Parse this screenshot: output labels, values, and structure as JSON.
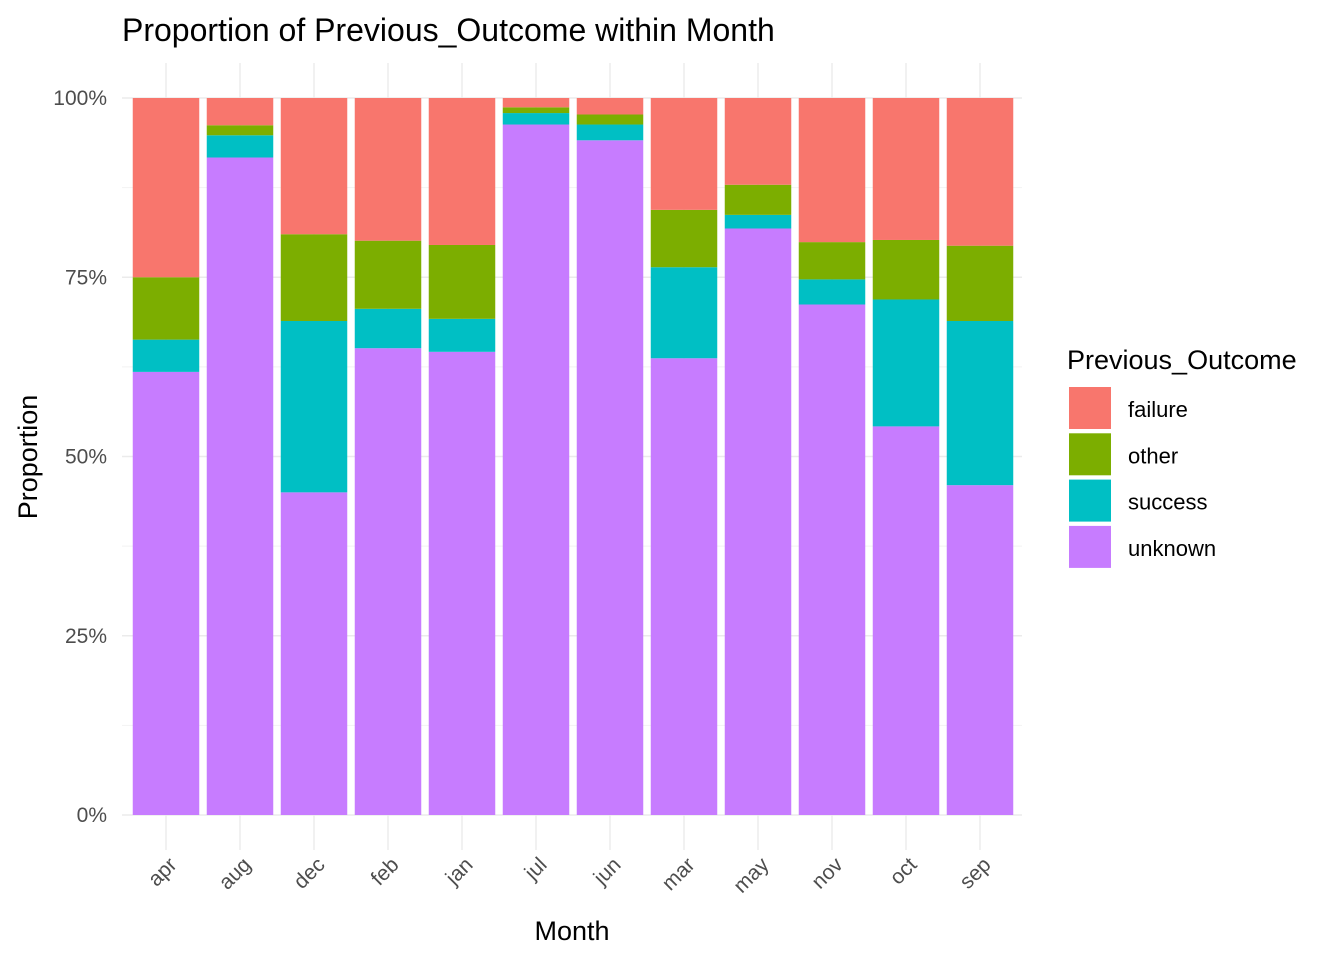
{
  "chart_data": {
    "type": "bar",
    "stacked": "proportion",
    "title": "Proportion of Previous_Outcome within Month",
    "xlabel": "Month",
    "ylabel": "Proportion",
    "ylim": [
      0,
      1
    ],
    "y_ticks": [
      "0%",
      "25%",
      "50%",
      "75%",
      "100%"
    ],
    "y_tick_values": [
      0,
      0.25,
      0.5,
      0.75,
      1.0
    ],
    "grid": true,
    "legend_position": "right",
    "legend_title": "Previous_Outcome",
    "categories": [
      "apr",
      "aug",
      "dec",
      "feb",
      "jan",
      "jul",
      "jun",
      "mar",
      "may",
      "nov",
      "oct",
      "sep"
    ],
    "series": [
      {
        "name": "unknown",
        "color": "#C77CFF",
        "values": [
          0.618,
          0.917,
          0.45,
          0.651,
          0.646,
          0.963,
          0.941,
          0.637,
          0.818,
          0.712,
          0.542,
          0.46
        ]
      },
      {
        "name": "success",
        "color": "#00BFC4",
        "values": [
          0.045,
          0.031,
          0.239,
          0.055,
          0.046,
          0.016,
          0.022,
          0.127,
          0.019,
          0.035,
          0.177,
          0.229
        ]
      },
      {
        "name": "other",
        "color": "#7CAE00",
        "values": [
          0.087,
          0.014,
          0.121,
          0.095,
          0.103,
          0.008,
          0.014,
          0.08,
          0.042,
          0.052,
          0.083,
          0.105
        ]
      },
      {
        "name": "failure",
        "color": "#F8766D",
        "values": [
          0.25,
          0.038,
          0.19,
          0.199,
          0.205,
          0.013,
          0.023,
          0.156,
          0.121,
          0.201,
          0.198,
          0.206
        ]
      }
    ],
    "legend_order": [
      "failure",
      "other",
      "success",
      "unknown"
    ]
  }
}
